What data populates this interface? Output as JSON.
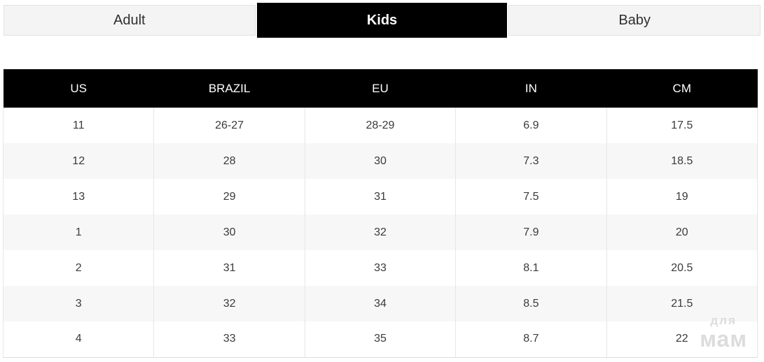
{
  "tabs": {
    "active_index": 1,
    "items": [
      {
        "label": "Adult"
      },
      {
        "label": "Kids"
      },
      {
        "label": "Baby"
      }
    ]
  },
  "table": {
    "columns": [
      "US",
      "BRAZIL",
      "EU",
      "IN",
      "CM"
    ],
    "rows": [
      [
        "11",
        "26-27",
        "28-29",
        "6.9",
        "17.5"
      ],
      [
        "12",
        "28",
        "30",
        "7.3",
        "18.5"
      ],
      [
        "13",
        "29",
        "31",
        "7.5",
        "19"
      ],
      [
        "1",
        "30",
        "32",
        "7.9",
        "20"
      ],
      [
        "2",
        "31",
        "33",
        "8.1",
        "20.5"
      ],
      [
        "3",
        "32",
        "34",
        "8.5",
        "21.5"
      ],
      [
        "4",
        "33",
        "35",
        "8.7",
        "22"
      ]
    ]
  },
  "watermark": {
    "line1": "для",
    "line2": "мам"
  },
  "colors": {
    "active_tab_bg": "#000000",
    "inactive_tab_bg": "#f4f4f4",
    "tab_border": "#e2e2e2",
    "header_bg": "#000000",
    "row_alt_bg": "#f7f7f7",
    "cell_border": "#e6e6e6",
    "watermark_text": "#dcdcdc"
  }
}
